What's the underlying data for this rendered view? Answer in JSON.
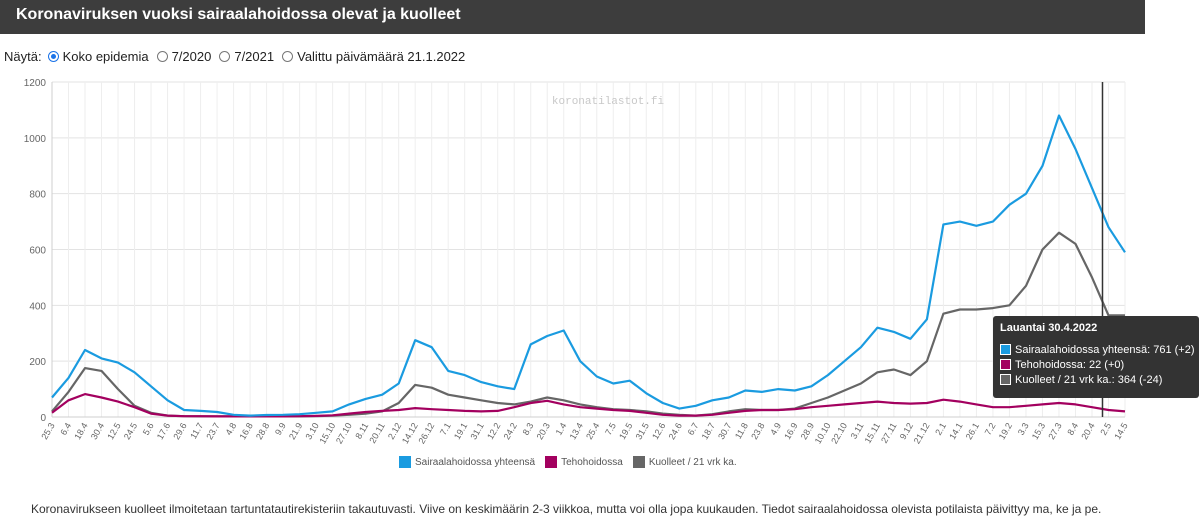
{
  "header": {
    "title": "Koronaviruksen vuoksi sairaalahoidossa olevat ja kuolleet"
  },
  "view_options": {
    "label": "Näytä:",
    "options": [
      {
        "label": "Koko epidemia",
        "selected": true
      },
      {
        "label": "7/2020",
        "selected": false
      },
      {
        "label": "7/2021",
        "selected": false
      },
      {
        "label": "Valittu päivämäärä 21.1.2022",
        "selected": false
      }
    ]
  },
  "chart_data": {
    "type": "line",
    "watermark": "koronatilastot.fi",
    "ylim": [
      0,
      1200
    ],
    "yticks": [
      "0",
      "200",
      "400",
      "600",
      "800",
      "1000",
      "1200"
    ],
    "xticks": [
      "25.3",
      "6.4",
      "18.4",
      "30.4",
      "12.5",
      "24.5",
      "5.6",
      "17.6",
      "29.6",
      "11.7",
      "23.7",
      "4.8",
      "16.8",
      "28.8",
      "9.9",
      "21.9",
      "3.10",
      "15.10",
      "27.10",
      "8.11",
      "20.11",
      "2.12",
      "14.12",
      "26.12",
      "7.1",
      "19.1",
      "31.1",
      "12.2",
      "24.2",
      "8.3",
      "20.3",
      "1.4",
      "13.4",
      "25.4",
      "7.5",
      "19.5",
      "31.5",
      "12.6",
      "24.6",
      "6.7",
      "18.7",
      "30.7",
      "11.8",
      "23.8",
      "4.9",
      "16.9",
      "28.9",
      "10.10",
      "22.10",
      "3.11",
      "15.11",
      "27.11",
      "9.12",
      "21.12",
      "2.1",
      "14.1",
      "26.1",
      "7.2",
      "19.2",
      "3.3",
      "15.3",
      "27.3",
      "8.4",
      "20.4",
      "2.5",
      "14.5"
    ],
    "cursor_tick": "2.5",
    "series": [
      {
        "name": "Sairaalahoidossa yhteensä",
        "color": "#1a9be0",
        "values": [
          70,
          140,
          240,
          210,
          195,
          160,
          110,
          60,
          25,
          22,
          18,
          8,
          5,
          7,
          8,
          10,
          15,
          20,
          45,
          65,
          80,
          120,
          275,
          250,
          165,
          150,
          125,
          110,
          100,
          260,
          290,
          310,
          200,
          145,
          120,
          130,
          85,
          50,
          30,
          40,
          60,
          70,
          95,
          90,
          100,
          95,
          110,
          150,
          200,
          250,
          320,
          305,
          280,
          350,
          690,
          700,
          685,
          700,
          760,
          800,
          900,
          1080,
          960,
          820,
          680,
          590
        ]
      },
      {
        "name": "Tehohoidossa",
        "color": "#a3005f",
        "values": [
          15,
          60,
          82,
          70,
          55,
          35,
          12,
          5,
          3,
          3,
          2,
          2,
          2,
          2,
          2,
          3,
          4,
          6,
          12,
          18,
          22,
          25,
          32,
          28,
          25,
          22,
          20,
          22,
          35,
          50,
          58,
          45,
          35,
          30,
          25,
          22,
          15,
          8,
          5,
          5,
          8,
          15,
          22,
          25,
          25,
          28,
          35,
          40,
          45,
          50,
          55,
          50,
          48,
          50,
          62,
          55,
          45,
          35,
          35,
          40,
          45,
          50,
          45,
          35,
          25,
          20
        ]
      },
      {
        "name": "Kuolleet / 21 vrk ka.",
        "color": "#666666",
        "values": [
          20,
          90,
          175,
          165,
          100,
          40,
          15,
          5,
          3,
          2,
          2,
          2,
          2,
          2,
          2,
          2,
          3,
          5,
          8,
          12,
          20,
          50,
          115,
          105,
          80,
          70,
          60,
          50,
          45,
          55,
          70,
          60,
          45,
          35,
          28,
          25,
          20,
          12,
          8,
          5,
          10,
          20,
          28,
          25,
          25,
          30,
          50,
          70,
          95,
          120,
          160,
          170,
          150,
          200,
          370,
          385,
          385,
          390,
          400,
          470,
          600,
          660,
          620,
          500,
          364,
          364
        ]
      }
    ]
  },
  "tooltip": {
    "title": "Lauantai 30.4.2022",
    "rows": [
      {
        "text": "Sairaalahoidossa yhteensä: 761 (+2)",
        "color": "#1a9be0"
      },
      {
        "text": "Tehohoidossa: 22 (+0)",
        "color": "#a3005f"
      },
      {
        "text": "Kuolleet / 21 vrk ka.: 364 (-24)",
        "color": "#666666"
      }
    ]
  },
  "legend": {
    "items": [
      {
        "label": "Sairaalahoidossa yhteensä",
        "color": "#1a9be0"
      },
      {
        "label": "Tehohoidossa",
        "color": "#a3005f"
      },
      {
        "label": "Kuolleet / 21 vrk ka.",
        "color": "#666666"
      }
    ]
  },
  "footnote": "Koronavirukseen kuolleet ilmoitetaan tartuntatautirekisteriin takautuvasti. Viive on keskimäärin 2-3 viikkoa, mutta voi olla jopa kuukauden. Tiedot sairaalahoidossa olevista potilaista päivittyy ma, ke ja pe."
}
